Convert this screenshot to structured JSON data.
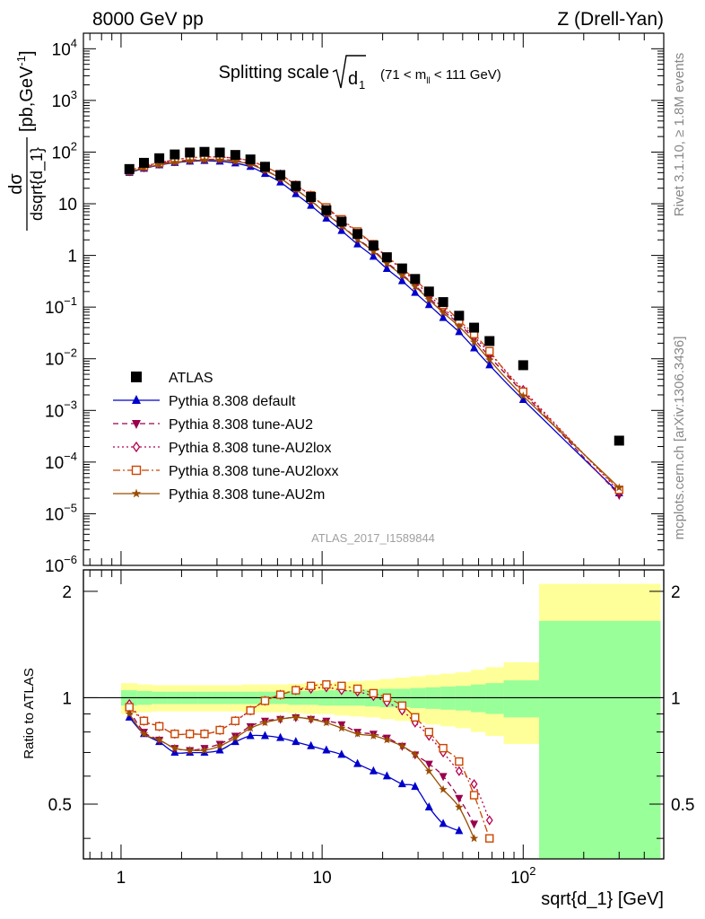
{
  "header": {
    "left": "8000 GeV pp",
    "right": "Z (Drell-Yan)"
  },
  "side_labels": {
    "rivet": "Rivet 3.1.10, ≥ 1.8M events",
    "mcplots": "mcplots.cern.ch [arXiv:1306.3436]"
  },
  "watermark": "ATLAS_2017_I1589844",
  "colors": {
    "atlas": "#000000",
    "default": "#0000cc",
    "au2": "#99004d",
    "au2lox": "#b3004d",
    "au2loxx": "#cc4400",
    "au2m": "#994d00",
    "band_inner": "#99ff99",
    "band_outer": "#ffff99"
  },
  "chart_data": [
    {
      "type": "scatter",
      "title": "Splitting scale √d₁ (71 < mₗₗ < 111 GeV)",
      "title_main": "Splitting scale",
      "title_sym": "d",
      "title_sub": "1",
      "title_range": "(71 < m",
      "title_range_sub": "ll",
      "title_range_end": " < 111 GeV)",
      "ylabel_num": "dσ",
      "ylabel_den": "dsqrt{d_1}",
      "ylabel_unit": "[pb,GeV",
      "ylabel_unit_sup": "-1",
      "ylabel_unit_end": "]",
      "y_scale": "log",
      "ylim": [
        1e-06,
        20000
      ],
      "x_scale": "log",
      "xlim": [
        0.65,
        500
      ],
      "y_ticks": [
        {
          "base": "10",
          "exp": "4",
          "v": 10000
        },
        {
          "base": "10",
          "exp": "3",
          "v": 1000
        },
        {
          "base": "10",
          "exp": "2",
          "v": 100
        },
        {
          "base": "10",
          "exp": "",
          "v": 10
        },
        {
          "base": "1",
          "exp": "",
          "v": 1
        },
        {
          "base": "10",
          "exp": "−1",
          "v": 0.1
        },
        {
          "base": "10",
          "exp": "−2",
          "v": 0.01
        },
        {
          "base": "10",
          "exp": "−3",
          "v": 0.001
        },
        {
          "base": "10",
          "exp": "−4",
          "v": 0.0001
        },
        {
          "base": "10",
          "exp": "−5",
          "v": 1e-05
        },
        {
          "base": "10",
          "exp": "−6",
          "v": 1e-06
        }
      ],
      "legend_position": "lower-left",
      "series": [
        {
          "name": "ATLAS",
          "key": "atlas",
          "marker": "square",
          "line": "none",
          "x": [
            1.1,
            1.3,
            1.55,
            1.85,
            2.2,
            2.6,
            3.1,
            3.7,
            4.4,
            5.2,
            6.2,
            7.4,
            8.8,
            10.5,
            12.5,
            15,
            18,
            21,
            25,
            29,
            34,
            40,
            48,
            57,
            68,
            100,
            300
          ],
          "y": [
            47,
            62,
            76,
            90,
            98,
            101,
            98,
            88,
            72,
            52,
            36,
            22,
            13.5,
            7.5,
            4.5,
            2.6,
            1.55,
            0.92,
            0.56,
            0.35,
            0.2,
            0.125,
            0.068,
            0.04,
            0.022,
            0.0075,
            0.00026
          ]
        },
        {
          "name": "Pythia 8.308 default",
          "key": "default",
          "marker": "triangle-up",
          "line": "solid",
          "x": [
            1.1,
            1.3,
            1.55,
            1.85,
            2.2,
            2.6,
            3.1,
            3.7,
            4.4,
            5.2,
            6.2,
            7.4,
            8.8,
            10.5,
            12.5,
            15,
            18,
            21,
            25,
            29,
            34,
            40,
            48,
            57,
            68,
            100,
            300
          ],
          "y": [
            40,
            48,
            56,
            62,
            66,
            68,
            66,
            61,
            52,
            38,
            26,
            15.5,
            9.2,
            5.2,
            3.0,
            1.65,
            0.95,
            0.55,
            0.32,
            0.19,
            0.11,
            0.062,
            0.033,
            0.016,
            0.0075,
            0.0016,
            2.5e-05
          ]
        },
        {
          "name": "Pythia 8.308 tune-AU2",
          "key": "au2",
          "marker": "triangle-down",
          "line": "dashed",
          "x": [
            1.1,
            1.3,
            1.55,
            1.85,
            2.2,
            2.6,
            3.1,
            3.7,
            4.4,
            5.2,
            6.2,
            7.4,
            8.8,
            10.5,
            12.5,
            15,
            18,
            21,
            25,
            29,
            34,
            40,
            48,
            57,
            68,
            100,
            300
          ],
          "y": [
            42,
            50,
            59,
            66,
            70,
            72,
            72,
            68,
            60,
            45,
            31,
            19,
            11.5,
            6.5,
            3.8,
            2.1,
            1.25,
            0.73,
            0.43,
            0.26,
            0.15,
            0.085,
            0.047,
            0.024,
            0.011,
            0.0022,
            2.3e-05
          ]
        },
        {
          "name": "Pythia 8.308 tune-AU2lox",
          "key": "au2lox",
          "marker": "diamond-open",
          "line": "dotted",
          "x": [
            1.1,
            1.3,
            1.55,
            1.85,
            2.2,
            2.6,
            3.1,
            3.7,
            4.4,
            5.2,
            6.2,
            7.4,
            8.8,
            10.5,
            12.5,
            15,
            18,
            21,
            25,
            29,
            34,
            40,
            48,
            57,
            68,
            100,
            300
          ],
          "y": [
            44,
            53,
            62,
            71,
            77,
            80,
            80,
            76,
            67,
            52,
            37,
            23,
            14.5,
            8.2,
            4.8,
            2.8,
            1.6,
            0.92,
            0.53,
            0.31,
            0.17,
            0.095,
            0.05,
            0.027,
            0.013,
            0.0025,
            2.7e-05
          ]
        },
        {
          "name": "Pythia 8.308 tune-AU2loxx",
          "key": "au2loxx",
          "marker": "square-open",
          "line": "dash-dot",
          "x": [
            1.1,
            1.3,
            1.55,
            1.85,
            2.2,
            2.6,
            3.1,
            3.7,
            4.4,
            5.2,
            6.2,
            7.4,
            8.8,
            10.5,
            12.5,
            15,
            18,
            21,
            25,
            29,
            34,
            40,
            48,
            57,
            68,
            100,
            300
          ],
          "y": [
            44,
            53,
            62,
            71,
            77,
            80,
            80,
            76,
            67,
            52,
            37,
            23,
            14.5,
            8.5,
            5.0,
            2.9,
            1.65,
            0.95,
            0.56,
            0.34,
            0.19,
            0.11,
            0.055,
            0.03,
            0.014,
            0.0023,
            2.9e-05
          ]
        },
        {
          "name": "Pythia 8.308 tune-AU2m",
          "key": "au2m",
          "marker": "star",
          "line": "solid",
          "x": [
            1.1,
            1.3,
            1.55,
            1.85,
            2.2,
            2.6,
            3.1,
            3.7,
            4.4,
            5.2,
            6.2,
            7.4,
            8.8,
            10.5,
            12.5,
            15,
            18,
            21,
            25,
            29,
            34,
            40,
            48,
            57,
            68,
            100,
            300
          ],
          "y": [
            41,
            49,
            57,
            63,
            68,
            70,
            70,
            66,
            58,
            44,
            31,
            19,
            11.5,
            6.4,
            3.7,
            2.05,
            1.2,
            0.7,
            0.41,
            0.25,
            0.14,
            0.078,
            0.042,
            0.021,
            0.0095,
            0.0019,
            3.2e-05
          ]
        }
      ]
    },
    {
      "type": "line",
      "ylabel": "Ratio to ATLAS",
      "xlabel": "sqrt{d_1} [GeV]",
      "x_scale": "log",
      "xlim": [
        0.65,
        500
      ],
      "ylim": [
        0.35,
        2.3
      ],
      "y_tick_labels": [
        {
          "label": "0.5",
          "v": 0.5
        },
        {
          "label": "1",
          "v": 1
        },
        {
          "label": "2",
          "v": 2
        }
      ],
      "x_tick_labels": [
        {
          "label": "1",
          "v": 1
        },
        {
          "label": "10",
          "v": 10
        },
        {
          "label": "10",
          "exp": "2",
          "v": 100
        }
      ],
      "bands": {
        "edges": [
          1,
          1.2,
          1.42,
          1.7,
          2,
          2.4,
          2.85,
          3.4,
          4,
          4.8,
          5.7,
          6.8,
          8.1,
          9.6,
          11.5,
          13.7,
          16.3,
          19.4,
          23,
          27.4,
          32.6,
          38.8,
          46,
          55,
          65,
          80,
          120,
          480
        ],
        "inner": [
          0.05,
          0.045,
          0.04,
          0.04,
          0.04,
          0.04,
          0.04,
          0.04,
          0.04,
          0.04,
          0.04,
          0.045,
          0.045,
          0.05,
          0.05,
          0.05,
          0.055,
          0.06,
          0.06,
          0.065,
          0.07,
          0.075,
          0.08,
          0.09,
          0.1,
          0.12,
          0.65
        ],
        "outer": [
          0.1,
          0.09,
          0.085,
          0.085,
          0.085,
          0.085,
          0.085,
          0.085,
          0.09,
          0.09,
          0.09,
          0.095,
          0.1,
          0.1,
          0.11,
          0.115,
          0.12,
          0.13,
          0.14,
          0.15,
          0.16,
          0.17,
          0.18,
          0.2,
          0.22,
          0.26,
          1.1
        ]
      },
      "series": [
        {
          "name": "Pythia 8.308 default",
          "key": "default",
          "marker": "triangle-up",
          "line": "solid",
          "x": [
            1.1,
            1.3,
            1.55,
            1.85,
            2.2,
            2.6,
            3.1,
            3.7,
            4.4,
            5.2,
            6.2,
            7.4,
            8.8,
            10.5,
            12.5,
            15,
            18,
            21,
            25,
            29,
            34,
            40,
            48
          ],
          "y": [
            0.88,
            0.79,
            0.75,
            0.7,
            0.7,
            0.7,
            0.71,
            0.75,
            0.78,
            0.78,
            0.77,
            0.75,
            0.73,
            0.71,
            0.69,
            0.65,
            0.62,
            0.6,
            0.57,
            0.56,
            0.49,
            0.44,
            0.42
          ]
        },
        {
          "name": "Pythia 8.308 tune-AU2",
          "key": "au2",
          "marker": "triangle-down",
          "line": "dashed",
          "x": [
            1.1,
            1.3,
            1.55,
            1.85,
            2.2,
            2.6,
            3.1,
            3.7,
            4.4,
            5.2,
            6.2,
            7.4,
            8.8,
            10.5,
            12.5,
            15,
            18,
            21,
            25,
            29,
            34,
            40,
            48,
            57
          ],
          "y": [
            0.92,
            0.8,
            0.76,
            0.72,
            0.71,
            0.72,
            0.74,
            0.78,
            0.83,
            0.86,
            0.87,
            0.88,
            0.87,
            0.86,
            0.84,
            0.8,
            0.79,
            0.77,
            0.73,
            0.69,
            0.65,
            0.6,
            0.52,
            0.44
          ]
        },
        {
          "name": "Pythia 8.308 tune-AU2lox",
          "key": "au2lox",
          "marker": "diamond-open",
          "line": "dotted",
          "x": [
            1.1,
            1.3,
            1.55,
            1.85,
            2.2,
            2.6,
            3.1,
            3.7,
            4.4,
            5.2,
            6.2,
            7.4,
            8.8,
            10.5,
            12.5,
            15,
            18,
            21,
            25,
            29,
            34,
            40,
            48,
            57,
            68
          ],
          "y": [
            0.96,
            0.86,
            0.83,
            0.79,
            0.79,
            0.79,
            0.81,
            0.86,
            0.92,
            0.98,
            1.02,
            1.05,
            1.06,
            1.07,
            1.05,
            1.04,
            1.01,
            0.97,
            0.92,
            0.85,
            0.78,
            0.7,
            0.62,
            0.57,
            0.45
          ]
        },
        {
          "name": "Pythia 8.308 tune-AU2loxx",
          "key": "au2loxx",
          "marker": "square-open",
          "line": "dash-dot",
          "x": [
            1.1,
            1.3,
            1.55,
            1.85,
            2.2,
            2.6,
            3.1,
            3.7,
            4.4,
            5.2,
            6.2,
            7.4,
            8.8,
            10.5,
            12.5,
            15,
            18,
            21,
            25,
            29,
            34,
            40,
            48,
            57,
            68
          ],
          "y": [
            0.94,
            0.86,
            0.83,
            0.79,
            0.79,
            0.79,
            0.81,
            0.86,
            0.92,
            0.98,
            1.02,
            1.05,
            1.08,
            1.09,
            1.08,
            1.06,
            1.03,
            1.0,
            0.95,
            0.88,
            0.8,
            0.72,
            0.66,
            0.53,
            0.4
          ]
        },
        {
          "name": "Pythia 8.308 tune-AU2m",
          "key": "au2m",
          "marker": "star",
          "line": "solid",
          "x": [
            1.1,
            1.3,
            1.55,
            1.85,
            2.2,
            2.6,
            3.1,
            3.7,
            4.4,
            5.2,
            6.2,
            7.4,
            8.8,
            10.5,
            12.5,
            15,
            18,
            21,
            25,
            29,
            34,
            40,
            48,
            57
          ],
          "y": [
            0.9,
            0.79,
            0.76,
            0.72,
            0.71,
            0.71,
            0.73,
            0.77,
            0.82,
            0.85,
            0.87,
            0.88,
            0.87,
            0.85,
            0.82,
            0.79,
            0.78,
            0.76,
            0.73,
            0.69,
            0.62,
            0.55,
            0.49,
            0.4
          ]
        }
      ]
    }
  ]
}
